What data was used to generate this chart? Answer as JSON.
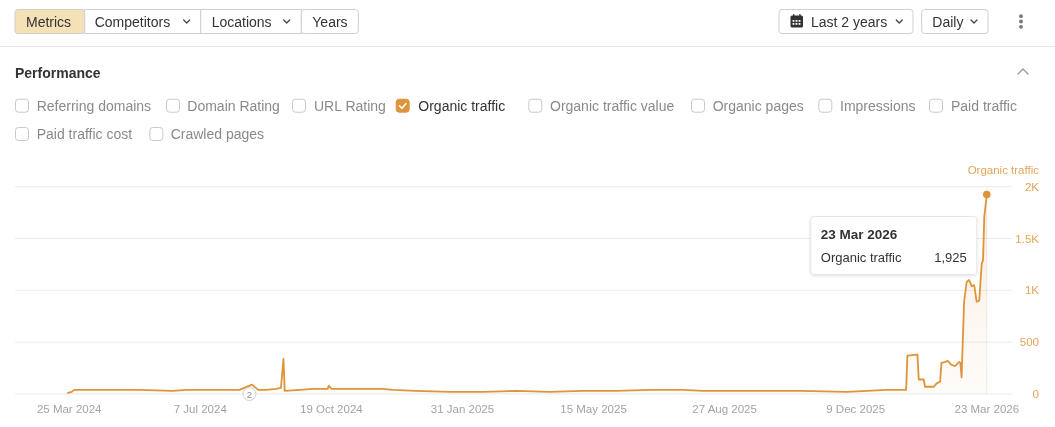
{
  "chart_data": {
    "type": "area",
    "title": "Performance",
    "ylabel": "Organic traffic",
    "x": [
      "2024-03-24",
      "2024-03-27",
      "2024-03-29",
      "2024-04-05",
      "2024-04-08",
      "2024-05-20",
      "2024-06-15",
      "2024-06-26",
      "2024-08-02",
      "2024-08-07",
      "2024-08-17",
      "2024-08-22",
      "2024-08-28",
      "2024-09-05",
      "2024-09-09",
      "2024-09-11",
      "2024-09-12",
      "2024-09-24",
      "2024-10-04",
      "2024-10-16",
      "2024-10-17",
      "2024-10-19",
      "2024-11-05",
      "2024-11-29",
      "2024-12-07",
      "2024-12-25",
      "2025-01-21",
      "2025-02-16",
      "2025-03-15",
      "2025-04-10",
      "2025-05-07",
      "2025-06-02",
      "2025-06-29",
      "2025-07-25",
      "2025-08-10",
      "2025-09-11",
      "2025-10-26",
      "2025-12-02",
      "2025-12-18",
      "2026-01-02",
      "2026-01-18",
      "2026-01-19",
      "2026-01-27",
      "2026-01-28",
      "2026-02-01",
      "2026-02-02",
      "2026-02-09",
      "2026-02-11",
      "2026-02-14",
      "2026-02-15",
      "2026-02-18",
      "2026-02-20",
      "2026-02-23",
      "2026-02-26",
      "2026-03-01",
      "2026-03-02",
      "2026-03-03",
      "2026-03-05",
      "2026-03-07",
      "2026-03-09",
      "2026-03-11",
      "2026-03-13",
      "2026-03-15",
      "2026-03-17",
      "2026-03-19",
      "2026-03-20",
      "2026-03-21",
      "2026-03-23"
    ],
    "values": [
      10,
      20,
      40,
      40,
      40,
      40,
      30,
      40,
      40,
      40,
      90,
      40,
      40,
      50,
      60,
      340,
      30,
      40,
      50,
      50,
      80,
      50,
      50,
      50,
      40,
      30,
      20,
      20,
      30,
      20,
      30,
      30,
      40,
      40,
      30,
      30,
      30,
      20,
      30,
      40,
      40,
      370,
      380,
      140,
      140,
      70,
      70,
      100,
      120,
      300,
      310,
      320,
      280,
      270,
      310,
      300,
      160,
      890,
      1080,
      1100,
      1040,
      1050,
      890,
      900,
      1260,
      1290,
      1710,
      1925
    ],
    "color": "#de943a",
    "xlim": [
      "2024-02-11",
      "2026-04-12"
    ],
    "ylim": [
      0,
      2000
    ],
    "xticks": [
      {
        "value": "2024-03-25",
        "label": "25 Mar 2024"
      },
      {
        "value": "2024-07-07",
        "label": "7 Jul 2024"
      },
      {
        "value": "2024-10-19",
        "label": "19 Oct 2024"
      },
      {
        "value": "2025-01-31",
        "label": "31 Jan 2025"
      },
      {
        "value": "2025-05-15",
        "label": "15 May 2025"
      },
      {
        "value": "2025-08-27",
        "label": "27 Aug 2025"
      },
      {
        "value": "2025-12-09",
        "label": "9 Dec 2025"
      },
      {
        "value": "2026-03-23",
        "label": "23 Mar 2026"
      }
    ],
    "yticks": [
      0,
      500,
      {
        "value": 1000,
        "label": "1K"
      },
      {
        "value": 1500,
        "label": "1.5K"
      },
      {
        "value": 2000,
        "label": "2K"
      }
    ],
    "grid": "y",
    "annotations": [
      "23 Mar 2026",
      "Organic traffic",
      "1,925",
      {
        "text": "2",
        "x": "2024-08-15",
        "y": 0
      },
      "Metrics",
      "Competitors",
      "Locations",
      "Years",
      "Last 2 years",
      "Daily",
      "Referring domains",
      "Domain Rating",
      "URL Rating",
      "Organic traffic",
      "Organic traffic value",
      "Organic pages",
      "Impressions",
      "Paid traffic",
      "Paid traffic cost",
      "Crawled pages"
    ]
  }
}
